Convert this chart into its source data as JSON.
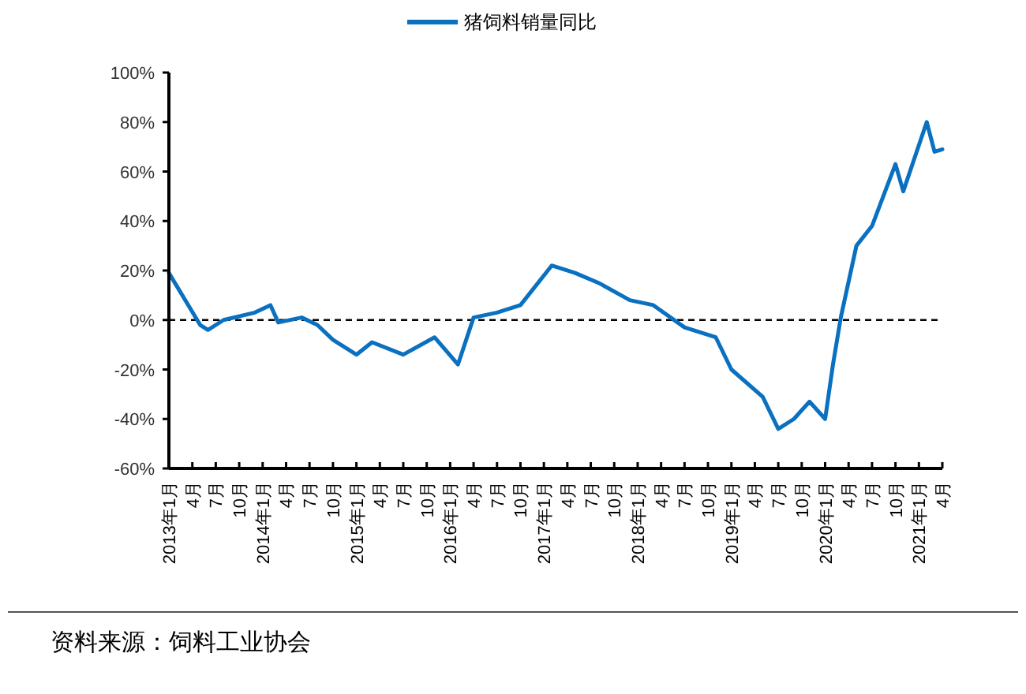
{
  "chart_data": {
    "type": "line",
    "legend": "top",
    "series": [
      {
        "name": "猪饲料销量同比",
        "color": "#0a70c0",
        "x": [
          "2013-01",
          "2013-05",
          "2013-06",
          "2013-08",
          "2013-12",
          "2014-02",
          "2014-03",
          "2014-06",
          "2014-08",
          "2014-10",
          "2015-01",
          "2015-03",
          "2015-07",
          "2015-11",
          "2016-02",
          "2016-04",
          "2016-07",
          "2016-10",
          "2017-02",
          "2017-05",
          "2017-08",
          "2017-12",
          "2018-03",
          "2018-07",
          "2018-11",
          "2019-01",
          "2019-05",
          "2019-07",
          "2019-09",
          "2019-11",
          "2020-01",
          "2020-02",
          "2020-03",
          "2020-05",
          "2020-07",
          "2020-10",
          "2020-11",
          "2021-02",
          "2021-03",
          "2021-04"
        ],
        "values": [
          19,
          -2,
          -4,
          0,
          3,
          6,
          -1,
          1,
          -2,
          -8,
          -14,
          -9,
          -14,
          -7,
          -18,
          1,
          3,
          6,
          22,
          19,
          15,
          8,
          6,
          -3,
          -7,
          -20,
          -31,
          -44,
          -40,
          -33,
          -40,
          -18,
          1,
          30,
          38,
          63,
          52,
          80,
          68,
          69
        ]
      }
    ],
    "xlim": [
      "2013-01",
      "2021-04"
    ],
    "xticks": [
      {
        "value": "2013-01",
        "label": "2013年1月"
      },
      {
        "value": "2013-04",
        "label": "4月"
      },
      {
        "value": "2013-07",
        "label": "7月"
      },
      {
        "value": "2013-10",
        "label": "10月"
      },
      {
        "value": "2014-01",
        "label": "2014年1月"
      },
      {
        "value": "2014-04",
        "label": "4月"
      },
      {
        "value": "2014-07",
        "label": "7月"
      },
      {
        "value": "2014-10",
        "label": "10月"
      },
      {
        "value": "2015-01",
        "label": "2015年1月"
      },
      {
        "value": "2015-04",
        "label": "4月"
      },
      {
        "value": "2015-07",
        "label": "7月"
      },
      {
        "value": "2015-10",
        "label": "10月"
      },
      {
        "value": "2016-01",
        "label": "2016年1月"
      },
      {
        "value": "2016-04",
        "label": "4月"
      },
      {
        "value": "2016-07",
        "label": "7月"
      },
      {
        "value": "2016-10",
        "label": "10月"
      },
      {
        "value": "2017-01",
        "label": "2017年1月"
      },
      {
        "value": "2017-04",
        "label": "4月"
      },
      {
        "value": "2017-07",
        "label": "7月"
      },
      {
        "value": "2017-10",
        "label": "10月"
      },
      {
        "value": "2018-01",
        "label": "2018年1月"
      },
      {
        "value": "2018-04",
        "label": "4月"
      },
      {
        "value": "2018-07",
        "label": "7月"
      },
      {
        "value": "2018-10",
        "label": "10月"
      },
      {
        "value": "2019-01",
        "label": "2019年1月"
      },
      {
        "value": "2019-04",
        "label": "4月"
      },
      {
        "value": "2019-07",
        "label": "7月"
      },
      {
        "value": "2019-10",
        "label": "10月"
      },
      {
        "value": "2020-01",
        "label": "2020年1月"
      },
      {
        "value": "2020-04",
        "label": "4月"
      },
      {
        "value": "2020-07",
        "label": "7月"
      },
      {
        "value": "2020-10",
        "label": "10月"
      },
      {
        "value": "2021-01",
        "label": "2021年1月"
      },
      {
        "value": "2021-04",
        "label": "4月"
      }
    ],
    "ylim": [
      -60,
      100
    ],
    "yticks": [
      {
        "value": -60,
        "label": "-60%"
      },
      {
        "value": -40,
        "label": "-40%"
      },
      {
        "value": -20,
        "label": "-20%"
      },
      {
        "value": 0,
        "label": "0%"
      },
      {
        "value": 20,
        "label": "20%"
      },
      {
        "value": 40,
        "label": "40%"
      },
      {
        "value": 60,
        "label": "60%"
      },
      {
        "value": 80,
        "label": "80%"
      },
      {
        "value": 100,
        "label": "100%"
      }
    ],
    "ref_lines": [
      {
        "axis": "y",
        "value": 0,
        "color": "#000000",
        "line_style": "dashed"
      }
    ],
    "annotations": [
      "资料来源：饲料工业协会"
    ]
  }
}
